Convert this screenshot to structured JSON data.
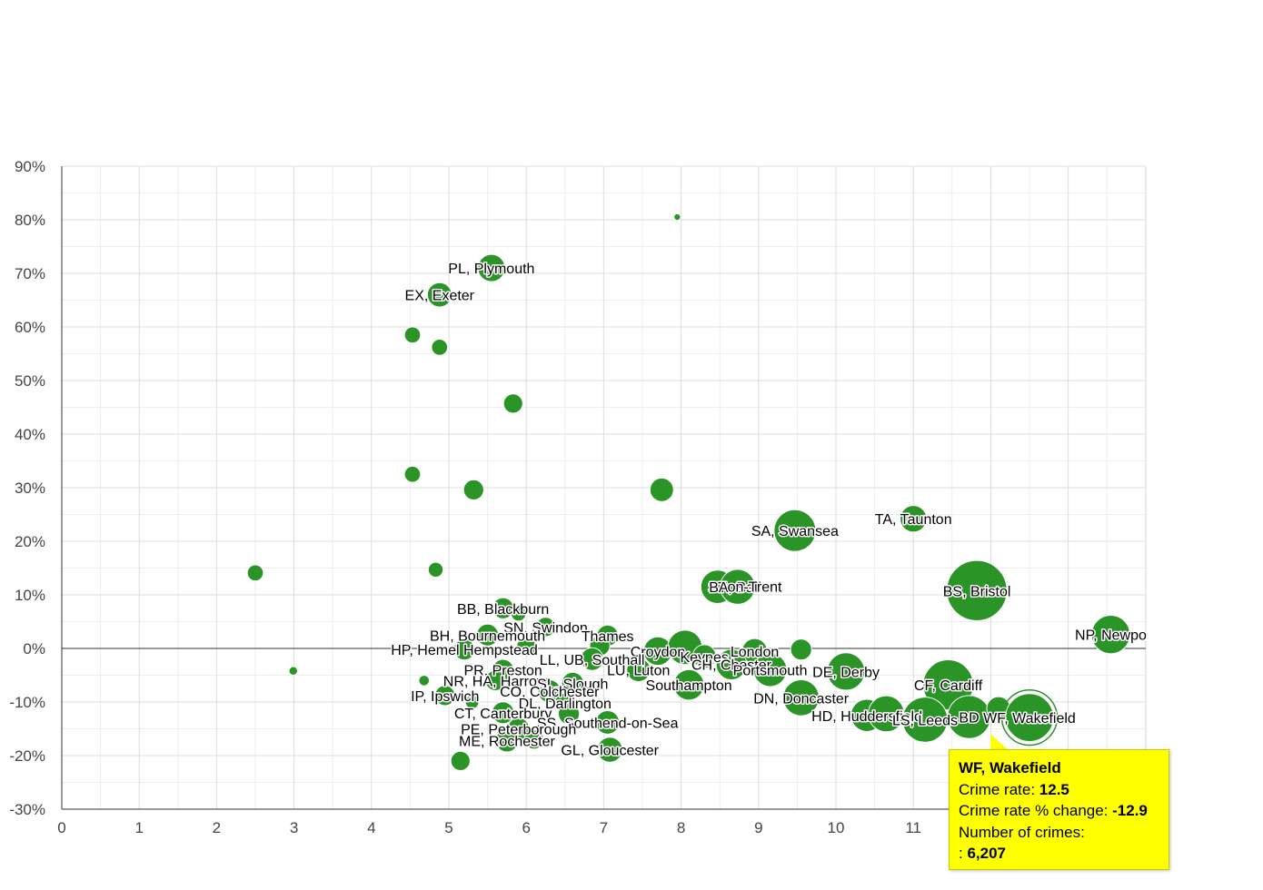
{
  "chart_data": {
    "type": "scatter",
    "title": "",
    "xlabel": "",
    "ylabel": "",
    "xlim": [
      0,
      14
    ],
    "ylim": [
      -30,
      90
    ],
    "x_ticks": [
      "0",
      "1",
      "2",
      "3",
      "4",
      "5",
      "6",
      "7",
      "8",
      "9",
      "10",
      "11"
    ],
    "y_ticks": [
      "90%",
      "80%",
      "70%",
      "60%",
      "50%",
      "40%",
      "30%",
      "20%",
      "10%",
      "0%",
      "-10%",
      "-20%",
      "-30%"
    ],
    "y_tick_values": [
      90,
      80,
      70,
      60,
      50,
      40,
      30,
      20,
      10,
      0,
      -10,
      -20,
      -30
    ],
    "grid": true,
    "colors": {
      "bubble": "#2a9426",
      "bubble_stroke": "#ffffff",
      "grid": "#dddddd",
      "zero_line": "#333333"
    },
    "points": [
      {
        "label": "",
        "x": 7.95,
        "y": 80.5,
        "crimes": 120
      },
      {
        "label": "PL, Plymouth",
        "x": 5.55,
        "y": 71.0,
        "crimes": 2000
      },
      {
        "label": "EX, Exeter",
        "x": 4.88,
        "y": 66.0,
        "crimes": 1600
      },
      {
        "label": "",
        "x": 4.53,
        "y": 58.5,
        "crimes": 700
      },
      {
        "label": "",
        "x": 4.88,
        "y": 56.2,
        "crimes": 700
      },
      {
        "label": "",
        "x": 5.83,
        "y": 45.7,
        "crimes": 1000
      },
      {
        "label": "",
        "x": 4.53,
        "y": 32.5,
        "crimes": 700
      },
      {
        "label": "",
        "x": 5.32,
        "y": 29.6,
        "crimes": 1100
      },
      {
        "label": "",
        "x": 7.75,
        "y": 29.6,
        "crimes": 1500
      },
      {
        "label": "SA, Swansea",
        "x": 9.47,
        "y": 22.0,
        "crimes": 4700
      },
      {
        "label": "TA, Taunton",
        "x": 11.0,
        "y": 24.2,
        "crimes": 1900
      },
      {
        "label": "",
        "x": 2.5,
        "y": 14.1,
        "crimes": 700
      },
      {
        "label": "",
        "x": 4.83,
        "y": 14.7,
        "crimes": 600
      },
      {
        "label": "ST",
        "x": 8.47,
        "y": 11.5,
        "crimes": 3000
      },
      {
        "label": "BA, Bath",
        "x": 8.73,
        "y": 11.5,
        "crimes": 3300
      },
      {
        "label": "on-Trent",
        "x": 8.95,
        "y": 11.6,
        "crimes": 0
      },
      {
        "label": "BS, Bristol",
        "x": 11.82,
        "y": 10.8,
        "crimes": 9800
      },
      {
        "label": "NP, Newpo",
        "x": 13.55,
        "y": 2.6,
        "crimes": 4000
      },
      {
        "label": "BB, Blackburn",
        "x": 5.7,
        "y": 7.5,
        "crimes": 1200
      },
      {
        "label": "SN, Swindon",
        "x": 6.25,
        "y": 4.0,
        "crimes": 1000
      },
      {
        "label": "",
        "x": 5.9,
        "y": 6.5,
        "crimes": 600
      },
      {
        "label": "BH, Bournemouth",
        "x": 5.5,
        "y": 2.5,
        "crimes": 1300
      },
      {
        "label": "Thames",
        "x": 7.05,
        "y": 2.4,
        "crimes": 1200
      },
      {
        "label": "HP, Hemel Hempstead",
        "x": 5.2,
        "y": -0.2,
        "crimes": 1200
      },
      {
        "label": "",
        "x": 6.0,
        "y": 0.3,
        "crimes": 1000
      },
      {
        "label": "",
        "x": 6.95,
        "y": 0.5,
        "crimes": 1100
      },
      {
        "label": "Croydon",
        "x": 7.7,
        "y": -0.5,
        "crimes": 2200
      },
      {
        "label": "",
        "x": 8.05,
        "y": 0.2,
        "crimes": 3200
      },
      {
        "label": "Keynes",
        "x": 8.3,
        "y": -1.5,
        "crimes": 1500
      },
      {
        "label": "London",
        "x": 8.95,
        "y": -0.5,
        "crimes": 1700
      },
      {
        "label": "",
        "x": 9.55,
        "y": -0.2,
        "crimes": 1200
      },
      {
        "label": "LL, UB, Southall",
        "x": 6.85,
        "y": -2.0,
        "crimes": 1400
      },
      {
        "label": "CH, Chester",
        "x": 8.65,
        "y": -3.0,
        "crimes": 2500
      },
      {
        "label": "Portsmouth",
        "x": 9.15,
        "y": -4.0,
        "crimes": 3000
      },
      {
        "label": "DE, Derby",
        "x": 10.13,
        "y": -4.3,
        "crimes": 3800
      },
      {
        "label": "LU, Luton",
        "x": 7.45,
        "y": -4.0,
        "crimes": 1500
      },
      {
        "label": "PR, Preston",
        "x": 5.7,
        "y": -4.0,
        "crimes": 1200
      },
      {
        "label": "NR, HA, Harrow",
        "x": 5.6,
        "y": -6.0,
        "crimes": 1100
      },
      {
        "label": "SL, Slough",
        "x": 6.6,
        "y": -6.5,
        "crimes": 1300
      },
      {
        "label": "Southampton",
        "x": 8.1,
        "y": -6.8,
        "crimes": 2500
      },
      {
        "label": "CF, Cardiff",
        "x": 11.45,
        "y": -6.8,
        "crimes": 6800
      },
      {
        "label": "IP, Ipswich",
        "x": 4.95,
        "y": -8.8,
        "crimes": 1100
      },
      {
        "label": "",
        "x": 4.68,
        "y": -6.0,
        "crimes": 300
      },
      {
        "label": "",
        "x": 2.99,
        "y": -4.2,
        "crimes": 200
      },
      {
        "label": "CO, Colchester",
        "x": 6.3,
        "y": -8.0,
        "crimes": 1400
      },
      {
        "label": "DL, Darlington",
        "x": 6.5,
        "y": -10.2,
        "crimes": 1100
      },
      {
        "label": "DN, Doncaster",
        "x": 9.55,
        "y": -9.2,
        "crimes": 3500
      },
      {
        "label": "",
        "x": 5.3,
        "y": -10.0,
        "crimes": 500
      },
      {
        "label": "CT, Canterbury",
        "x": 5.7,
        "y": -12.0,
        "crimes": 1300
      },
      {
        "label": "",
        "x": 6.55,
        "y": -12.2,
        "crimes": 1200
      },
      {
        "label": "SS, Southend-on-Sea",
        "x": 7.05,
        "y": -13.8,
        "crimes": 1500
      },
      {
        "label": "HD, Huddersfield",
        "x": 10.4,
        "y": -12.5,
        "crimes": 2800
      },
      {
        "label": "",
        "x": 10.65,
        "y": -12.2,
        "crimes": 3500
      },
      {
        "label": "LS, Leeds",
        "x": 11.15,
        "y": -13.3,
        "crimes": 5500
      },
      {
        "label": "BD",
        "x": 11.72,
        "y": -12.8,
        "crimes": 5000
      },
      {
        "label": "",
        "x": 12.1,
        "y": -11.2,
        "crimes": 1500
      },
      {
        "label": "WF, Wakefield",
        "x": 12.5,
        "y": -12.9,
        "crimes": 6207
      },
      {
        "label": "PE, Peterborough",
        "x": 5.9,
        "y": -15.0,
        "crimes": 1300
      },
      {
        "label": "ME, Rochester",
        "x": 5.75,
        "y": -17.2,
        "crimes": 1400
      },
      {
        "label": "",
        "x": 6.1,
        "y": -17.0,
        "crimes": 1000
      },
      {
        "label": "GL, Gloucester",
        "x": 7.08,
        "y": -18.9,
        "crimes": 1700
      },
      {
        "label": "",
        "x": 5.15,
        "y": -21.0,
        "crimes": 1000
      }
    ],
    "highlight": {
      "label": "WF, Wakefield",
      "x": 12.5,
      "y": -12.9
    },
    "tooltip": {
      "title": "WF, Wakefield",
      "rate_label": "Crime rate: ",
      "rate_value": "12.5",
      "change_label": "Crime rate % change: ",
      "change_value": "-12.9",
      "crimes_label": "Number of crimes:",
      "crimes_prefix": ": ",
      "crimes_value": "6,207"
    }
  }
}
